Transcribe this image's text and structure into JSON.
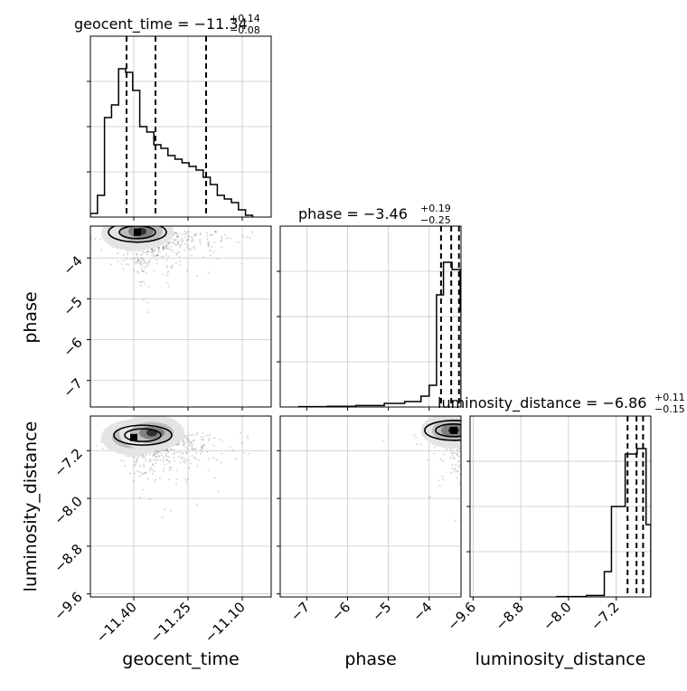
{
  "chart_data": {
    "type": "corner",
    "parameters": [
      "geocent_time",
      "phase",
      "luminosity_distance"
    ],
    "titles": [
      {
        "text": "geocent_time = −11.34",
        "sup": "+0.14",
        "sub": "−0.08"
      },
      {
        "text": "phase = −3.46",
        "sup": "+0.19",
        "sub": "−0.25"
      },
      {
        "text": "luminosity_distance = −6.86",
        "sup": "+0.11",
        "sub": "−0.15"
      }
    ],
    "axis_labels": [
      "geocent_time",
      "phase",
      "luminosity_distance"
    ],
    "ranges": {
      "geocent_time": [
        -11.52,
        -11.02
      ],
      "phase": [
        -7.65,
        -3.22
      ],
      "luminosity_distance": [
        -9.65,
        -6.62
      ]
    },
    "ticks": {
      "geocent_time": {
        "values": [
          -11.4,
          -11.25,
          -11.1
        ],
        "labels": [
          "−11.40",
          "−11.25",
          "−11.10"
        ]
      },
      "phase": {
        "values": [
          -7,
          -6,
          -5,
          -4
        ],
        "labels": [
          "−7",
          "−6",
          "−5",
          "−4"
        ]
      },
      "luminosity_distance": {
        "values": [
          -9.6,
          -8.8,
          -8.0,
          -7.2
        ],
        "labels": [
          "−9.6",
          "−8.8",
          "−8.0",
          "−7.2"
        ]
      }
    },
    "grid": true,
    "histograms": {
      "geocent_time": {
        "bin_width": 0.0195,
        "edges_start": -11.52,
        "counts": [
          0.02,
          0.12,
          0.55,
          0.62,
          0.82,
          0.8,
          0.7,
          0.5,
          0.47,
          0.4,
          0.38,
          0.34,
          0.32,
          0.3,
          0.28,
          0.26,
          0.22,
          0.18,
          0.12,
          0.1,
          0.08,
          0.04,
          0.01
        ],
        "quantiles": [
          -11.42,
          -11.34,
          -11.2
        ]
      },
      "phase": {
        "bins": [
          {
            "x0": -7.2,
            "x1": -6.5,
            "count": 0.002
          },
          {
            "x0": -6.5,
            "x1": -5.8,
            "count": 0.004
          },
          {
            "x0": -5.8,
            "x1": -5.1,
            "count": 0.008
          },
          {
            "x0": -5.1,
            "x1": -4.6,
            "count": 0.02
          },
          {
            "x0": -4.6,
            "x1": -4.2,
            "count": 0.03
          },
          {
            "x0": -4.2,
            "x1": -4.0,
            "count": 0.06
          },
          {
            "x0": -4.0,
            "x1": -3.82,
            "count": 0.12
          },
          {
            "x0": -3.82,
            "x1": -3.65,
            "count": 0.62
          },
          {
            "x0": -3.65,
            "x1": -3.44,
            "count": 0.8
          },
          {
            "x0": -3.44,
            "x1": -3.24,
            "count": 0.76
          },
          {
            "x0": -3.24,
            "x1": -3.22,
            "count": 0.53
          }
        ],
        "quantiles": [
          -3.71,
          -3.46,
          -3.27
        ]
      },
      "luminosity_distance": {
        "bins": [
          {
            "x0": -8.2,
            "x1": -7.7,
            "count": 0.002
          },
          {
            "x0": -7.7,
            "x1": -7.4,
            "count": 0.008
          },
          {
            "x0": -7.4,
            "x1": -7.28,
            "count": 0.14
          },
          {
            "x0": -7.28,
            "x1": -7.05,
            "count": 0.5
          },
          {
            "x0": -7.05,
            "x1": -6.85,
            "count": 0.79
          },
          {
            "x0": -6.85,
            "x1": -6.7,
            "count": 0.82
          },
          {
            "x0": -6.7,
            "x1": -6.62,
            "count": 0.4
          }
        ],
        "quantiles": [
          -7.01,
          -6.86,
          -6.75
        ]
      }
    },
    "densities": {
      "geocent_time_vs_phase": {
        "x": "geocent_time",
        "y": "phase",
        "cores": [
          [
            -11.4,
            -3.39
          ],
          [
            -11.38,
            -3.35
          ]
        ],
        "peak": [
          -11.39,
          -3.37
        ]
      },
      "geocent_time_vs_luminosity_distance": {
        "x": "geocent_time",
        "y": "luminosity_distance",
        "cores": [
          [
            -11.4,
            -6.98
          ],
          [
            -11.35,
            -6.9
          ]
        ],
        "peak": [
          -11.4,
          -6.98
        ]
      },
      "phase_vs_luminosity_distance": {
        "x": "phase",
        "y": "luminosity_distance",
        "cores": [
          [
            -3.4,
            -6.86
          ]
        ],
        "peak": [
          -3.4,
          -6.86
        ]
      }
    }
  }
}
